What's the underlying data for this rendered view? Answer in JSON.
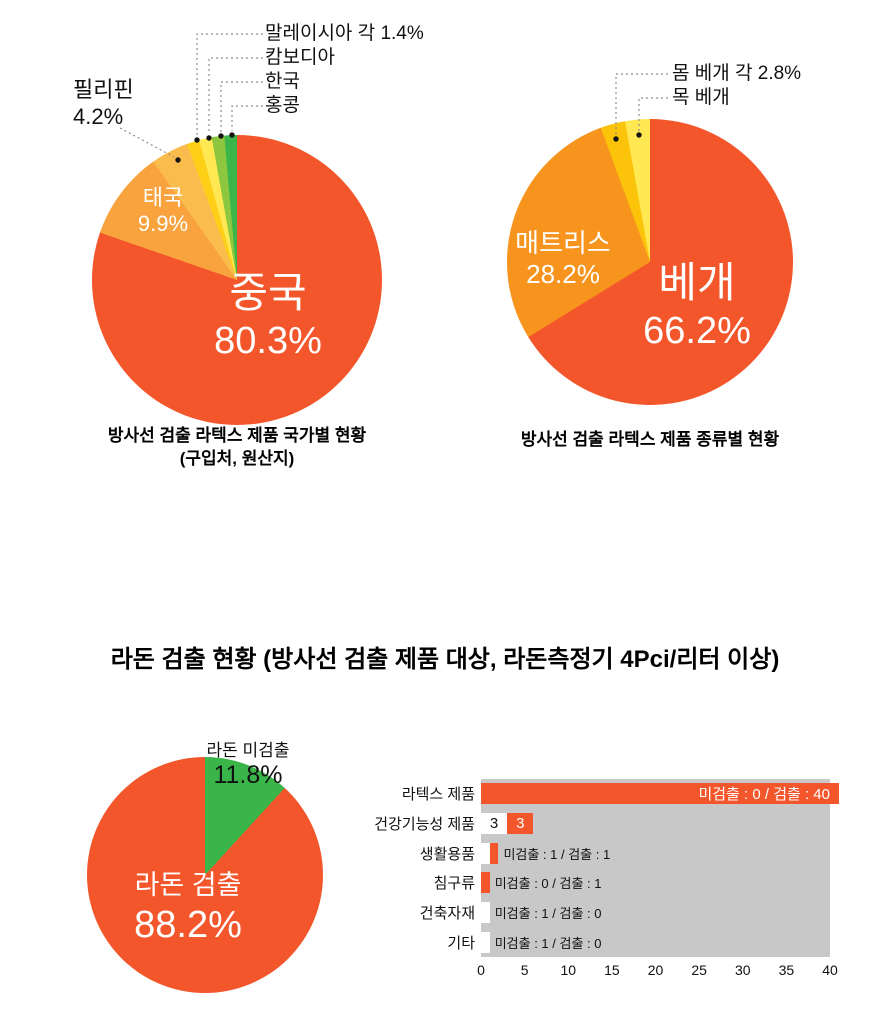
{
  "section_title": "라돈 검출 현황 (방사선 검출 제품 대상, 라돈측정기 4Pci/리터 이상)",
  "colors": {
    "primary_orange": "#f3562b",
    "mattress_orange": "#f7941e",
    "detected_green": "#3ab54a",
    "plot_gray": "#c8c8c8"
  },
  "chart_data": [
    {
      "id": "latex-by-country",
      "type": "pie",
      "caption": [
        "방사선 검출 라텍스 제품 국가별 현황",
        "(구입처, 원산지)"
      ],
      "callout_lines": [
        "말레이시아 각 1.4%",
        "캄보디아",
        "한국",
        "홍콩"
      ],
      "slices": [
        {
          "label": "중국",
          "value": 80.3,
          "display": "80.3%",
          "color": "#f3562b"
        },
        {
          "label": "태국",
          "value": 9.9,
          "display": "9.9%",
          "color": "#f8a33e"
        },
        {
          "label": "필리핀",
          "value": 4.2,
          "display": "4.2%",
          "color": "#fbbc4e"
        },
        {
          "label": "말레이시아",
          "value": 1.4,
          "display": "1.4%",
          "color": "#fdd017"
        },
        {
          "label": "캄보디아",
          "value": 1.4,
          "display": "1.4%",
          "color": "#ffe851"
        },
        {
          "label": "한국",
          "value": 1.4,
          "display": "1.4%",
          "color": "#8dc63f"
        },
        {
          "label": "홍콩",
          "value": 1.4,
          "display": "1.4%",
          "color": "#39b54a"
        }
      ]
    },
    {
      "id": "latex-by-type",
      "type": "pie",
      "caption": [
        "방사선 검출 라텍스 제품 종류별 현황"
      ],
      "callout_lines": [
        "몸 베개 각 2.8%",
        "목 베개"
      ],
      "slices": [
        {
          "label": "베개",
          "value": 66.2,
          "display": "66.2%",
          "color": "#f3562b"
        },
        {
          "label": "매트리스",
          "value": 28.2,
          "display": "28.2%",
          "color": "#f7941e"
        },
        {
          "label": "몸 베개",
          "value": 2.8,
          "display": "2.8%",
          "color": "#fcc30b"
        },
        {
          "label": "목 베개",
          "value": 2.8,
          "display": "2.8%",
          "color": "#ffe851"
        }
      ]
    },
    {
      "id": "radon-detection",
      "type": "pie",
      "slices": [
        {
          "label": "라돈 미검출",
          "value": 11.8,
          "display": "11.8%",
          "color": "#3ab54a"
        },
        {
          "label": "라돈 검출",
          "value": 88.2,
          "display": "88.2%",
          "color": "#f3562b"
        }
      ]
    },
    {
      "id": "radon-by-product-type",
      "type": "bar",
      "orientation": "horizontal",
      "xlim": [
        0,
        40
      ],
      "x_ticks": [
        0,
        5,
        10,
        15,
        20,
        25,
        30,
        35,
        40
      ],
      "plot_background": "#c8c8c8",
      "series": [
        {
          "name": "미검출",
          "color": "#ffffff"
        },
        {
          "name": "검출",
          "color": "#f3562b"
        }
      ],
      "rows": [
        {
          "category": "라텍스 제품",
          "not_detected": 0,
          "detected": 40,
          "detected_text": "미검출 : 0  / 검출 : 40"
        },
        {
          "category": "건강기능성 제품",
          "not_detected": 3,
          "detected": 3,
          "nd_text": "3",
          "detected_text": "3"
        },
        {
          "category": "생활용품",
          "not_detected": 1,
          "detected": 1,
          "after_text": "미검출 : 1 / 검출 : 1"
        },
        {
          "category": "침구류",
          "not_detected": 0,
          "detected": 1,
          "after_text": "미검출 : 0 / 검출 : 1"
        },
        {
          "category": "건축자재",
          "not_detected": 1,
          "detected": 0,
          "after_text": "미검출 : 1 / 검출 : 0"
        },
        {
          "category": "기타",
          "not_detected": 1,
          "detected": 0,
          "after_text": "미검출 : 1 / 검출 : 0"
        }
      ]
    }
  ]
}
